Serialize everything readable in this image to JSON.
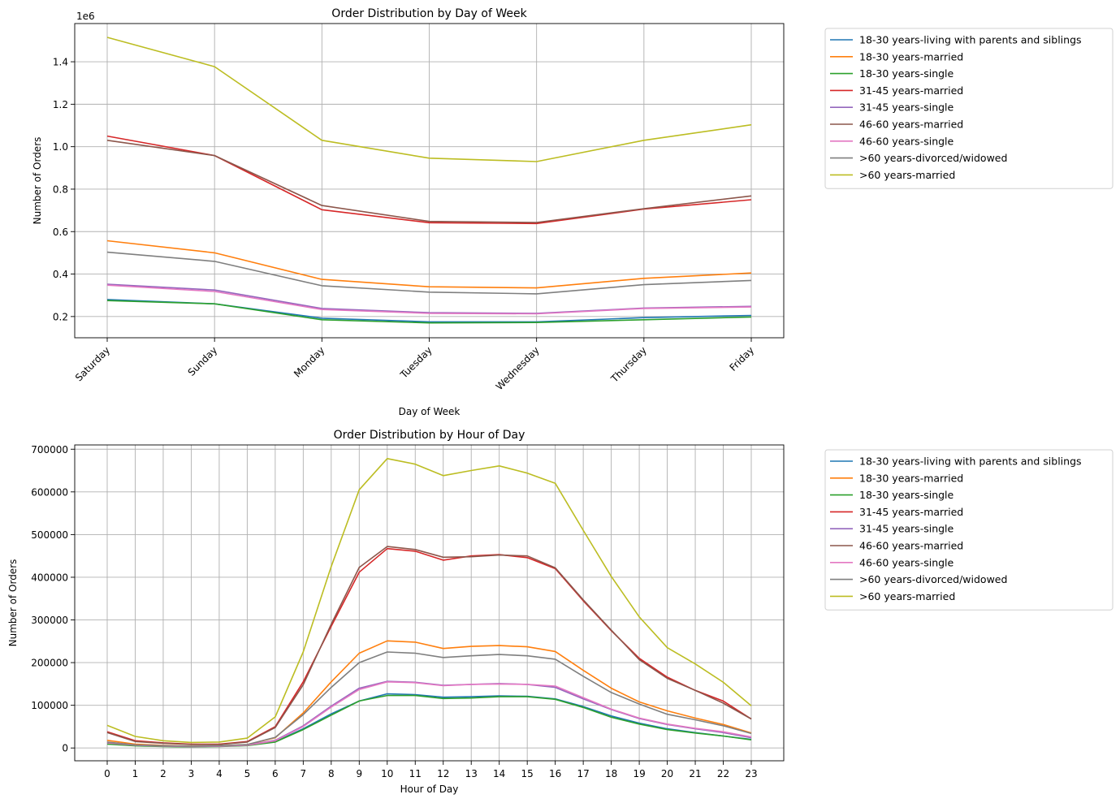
{
  "chart_data": [
    {
      "type": "line",
      "title": "Order Distribution by Day of Week",
      "xlabel": "Day of Week",
      "ylabel": "Number of Orders",
      "y_offset_label": "1e6",
      "categories": [
        "Saturday",
        "Sunday",
        "Monday",
        "Tuesday",
        "Wednesday",
        "Thursday",
        "Friday"
      ],
      "ylim": [
        100000,
        1580000
      ],
      "yticks": [
        200000,
        400000,
        600000,
        800000,
        1000000,
        1200000,
        1400000
      ],
      "ytick_labels": [
        "0.2",
        "0.4",
        "0.6",
        "0.8",
        "1.0",
        "1.2",
        "1.4"
      ],
      "grid": true,
      "legend_position": "outside-right",
      "series": [
        {
          "name": "18-30 years-living with parents and siblings",
          "color": "#1f77b4",
          "values": [
            280000,
            260000,
            192000,
            175000,
            175000,
            195000,
            205000
          ]
        },
        {
          "name": "18-30 years-married",
          "color": "#ff7f0e",
          "values": [
            557000,
            500000,
            375000,
            340000,
            335000,
            380000,
            405000
          ]
        },
        {
          "name": "18-30 years-single",
          "color": "#2ca02c",
          "values": [
            275000,
            260000,
            185000,
            170000,
            172000,
            185000,
            198000
          ]
        },
        {
          "name": "31-45 years-married",
          "color": "#d62728",
          "values": [
            1050000,
            958000,
            703000,
            642000,
            638000,
            706000,
            750000
          ]
        },
        {
          "name": "31-45 years-single",
          "color": "#9467bd",
          "values": [
            352000,
            325000,
            238000,
            218000,
            215000,
            240000,
            248000
          ]
        },
        {
          "name": "46-60 years-married",
          "color": "#8c564b",
          "values": [
            1030000,
            958000,
            723000,
            648000,
            643000,
            708000,
            768000
          ]
        },
        {
          "name": "46-60 years-single",
          "color": "#e377c2",
          "values": [
            348000,
            318000,
            233000,
            215000,
            213000,
            238000,
            245000
          ]
        },
        {
          "name": ">60 years-divorced/widowed",
          "color": "#7f7f7f",
          "values": [
            503000,
            460000,
            345000,
            315000,
            307000,
            350000,
            370000
          ]
        },
        {
          "name": ">60 years-married",
          "color": "#bcbd22",
          "values": [
            1515000,
            1377000,
            1030000,
            946000,
            930000,
            1030000,
            1103000
          ]
        }
      ]
    },
    {
      "type": "line",
      "title": "Order Distribution by Hour of Day",
      "xlabel": "Hour of Day",
      "ylabel": "Number of Orders",
      "categories": [
        "0",
        "1",
        "2",
        "3",
        "4",
        "5",
        "6",
        "7",
        "8",
        "9",
        "10",
        "11",
        "12",
        "13",
        "14",
        "15",
        "16",
        "17",
        "18",
        "19",
        "20",
        "21",
        "22",
        "23"
      ],
      "ylim": [
        -30000,
        710000
      ],
      "yticks": [
        0,
        100000,
        200000,
        300000,
        400000,
        500000,
        600000,
        700000
      ],
      "ytick_labels": [
        "0",
        "100000",
        "200000",
        "300000",
        "400000",
        "500000",
        "600000",
        "700000"
      ],
      "grid": true,
      "legend_position": "outside-right",
      "series": [
        {
          "name": "18-30 years-living with parents and siblings",
          "color": "#1f77b4",
          "values": [
            10000,
            6000,
            4000,
            3000,
            4000,
            6000,
            15000,
            45000,
            80000,
            110000,
            127000,
            125000,
            119000,
            120000,
            122000,
            121000,
            115000,
            97000,
            75000,
            58000,
            45000,
            36000,
            28000,
            20000
          ]
        },
        {
          "name": "18-30 years-married",
          "color": "#ff7f0e",
          "values": [
            18000,
            9000,
            6000,
            4000,
            5000,
            8000,
            24000,
            82000,
            155000,
            222000,
            251000,
            248000,
            233000,
            238000,
            240000,
            237000,
            226000,
            182000,
            140000,
            108000,
            87000,
            70000,
            55000,
            35000
          ]
        },
        {
          "name": "18-30 years-single",
          "color": "#2ca02c",
          "values": [
            9000,
            5000,
            3500,
            2500,
            3500,
            5500,
            14000,
            43000,
            77000,
            110000,
            123000,
            123000,
            116000,
            117000,
            120000,
            120000,
            114000,
            95000,
            72000,
            56000,
            43000,
            35000,
            28000,
            19000
          ]
        },
        {
          "name": "31-45 years-married",
          "color": "#d62728",
          "values": [
            38000,
            17000,
            12000,
            9000,
            9000,
            15000,
            50000,
            155000,
            285000,
            412000,
            467000,
            461000,
            440000,
            450000,
            453000,
            446000,
            420000,
            345000,
            275000,
            210000,
            166000,
            135000,
            110000,
            68000
          ]
        },
        {
          "name": "31-45 years-single",
          "color": "#9467bd",
          "values": [
            13000,
            7000,
            5000,
            3500,
            4000,
            7000,
            18000,
            52000,
            98000,
            140000,
            156000,
            154000,
            147000,
            149000,
            151000,
            149000,
            142000,
            115000,
            90000,
            69000,
            55000,
            45000,
            36000,
            24000
          ]
        },
        {
          "name": "46-60 years-married",
          "color": "#8c564b",
          "values": [
            36000,
            15000,
            11000,
            8000,
            8000,
            14000,
            48000,
            148000,
            290000,
            423000,
            472000,
            465000,
            447000,
            448000,
            452000,
            450000,
            422000,
            347000,
            276000,
            207000,
            163000,
            135000,
            105000,
            68000
          ]
        },
        {
          "name": "46-60 years-single",
          "color": "#e377c2",
          "values": [
            12000,
            6500,
            4500,
            3500,
            4000,
            6500,
            17000,
            50000,
            96000,
            137000,
            155000,
            153000,
            146000,
            149000,
            150000,
            149000,
            145000,
            118000,
            91000,
            70000,
            56000,
            46000,
            38000,
            26000
          ]
        },
        {
          "name": ">60 years-divorced/widowed",
          "color": "#7f7f7f",
          "values": [
            14000,
            7000,
            5000,
            4000,
            5000,
            8000,
            25000,
            78000,
            142000,
            200000,
            225000,
            222000,
            212000,
            216000,
            219000,
            216000,
            208000,
            168000,
            130000,
            103000,
            79000,
            66000,
            52000,
            34000
          ]
        },
        {
          "name": ">60 years-married",
          "color": "#bcbd22",
          "values": [
            53000,
            27000,
            17000,
            13000,
            14000,
            23000,
            73000,
            225000,
            425000,
            605000,
            678000,
            665000,
            638000,
            650000,
            661000,
            644000,
            620000,
            510000,
            402000,
            307000,
            235000,
            197000,
            154000,
            99000
          ]
        }
      ]
    }
  ]
}
